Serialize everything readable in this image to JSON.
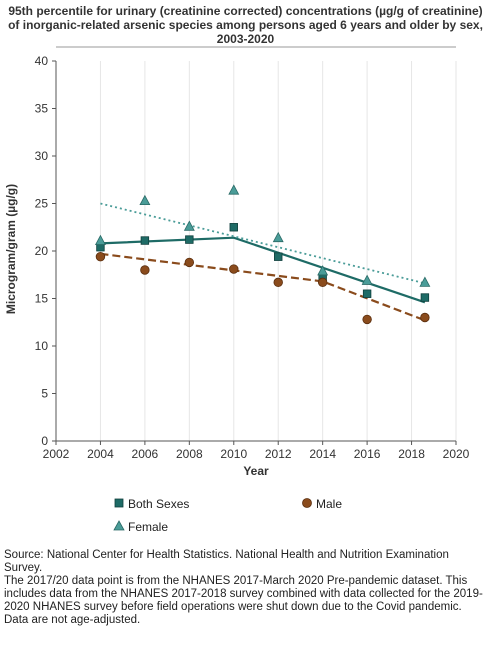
{
  "title_lines": [
    "95th percentile for urinary (creatinine corrected) concentrations (µg/g of creatinine)",
    "of inorganic-related arsenic species among persons aged 6 years and older by sex,",
    "2003-2020"
  ],
  "notes": [
    "Source: National Center for Health Statistics. National Health and Nutrition Examination Survey.",
    "The 2017/20 data point is from the NHANES 2017-March 2020 Pre-pandemic dataset. This includes data from the NHANES 2017-2018 survey combined with data collected for the 2019-2020 NHANES survey before field operations were shut down due to the Covid pandemic.",
    "Data are not age-adjusted."
  ],
  "colors": {
    "both_sexes": "#1e6b66",
    "female": "#4a9c98",
    "male": "#8a4b1c",
    "axis": "#555555",
    "grid": "#e6e6e6"
  },
  "chart_data": {
    "type": "scatter",
    "xlabel": "Year",
    "ylabel": "Microgram/gram (µg/g)",
    "xlim": [
      2002,
      2020
    ],
    "ylim": [
      0,
      40
    ],
    "x_ticks": [
      "2002",
      "2004",
      "2006",
      "2008",
      "2010",
      "2012",
      "2014",
      "2016",
      "2018",
      "2020"
    ],
    "y_ticks": [
      "0",
      "5",
      "10",
      "15",
      "20",
      "25",
      "30",
      "35",
      "40"
    ],
    "grid": "vertical lines at tick marks",
    "legend_position": "bottom",
    "series": [
      {
        "name": "Both Sexes",
        "marker": "square",
        "x": [
          2004,
          2006,
          2008,
          2010,
          2012,
          2014,
          2016,
          2018.6
        ],
        "y": [
          20.4,
          21.1,
          21.2,
          22.5,
          19.4,
          17.2,
          15.5,
          15.1
        ],
        "trend": {
          "style": "solid",
          "x": [
            2004,
            2010,
            2018.6
          ],
          "y": [
            20.8,
            21.4,
            14.6
          ]
        }
      },
      {
        "name": "Male",
        "marker": "circle",
        "x": [
          2004,
          2006,
          2008,
          2010,
          2012,
          2014,
          2016,
          2018.6
        ],
        "y": [
          19.4,
          18.0,
          18.8,
          18.1,
          16.7,
          16.7,
          12.8,
          13.0
        ],
        "trend": {
          "style": "dashed",
          "x": [
            2004,
            2014,
            2018.6
          ],
          "y": [
            19.7,
            16.8,
            12.7
          ]
        }
      },
      {
        "name": "Female",
        "marker": "triangle",
        "x": [
          2004,
          2006,
          2008,
          2010,
          2012,
          2014,
          2016,
          2018.6
        ],
        "y": [
          21.1,
          25.3,
          22.6,
          26.4,
          21.4,
          17.9,
          16.9,
          16.7
        ],
        "trend": {
          "style": "dotted",
          "x": [
            2004,
            2018.6
          ],
          "y": [
            25.0,
            16.6
          ]
        }
      }
    ]
  }
}
